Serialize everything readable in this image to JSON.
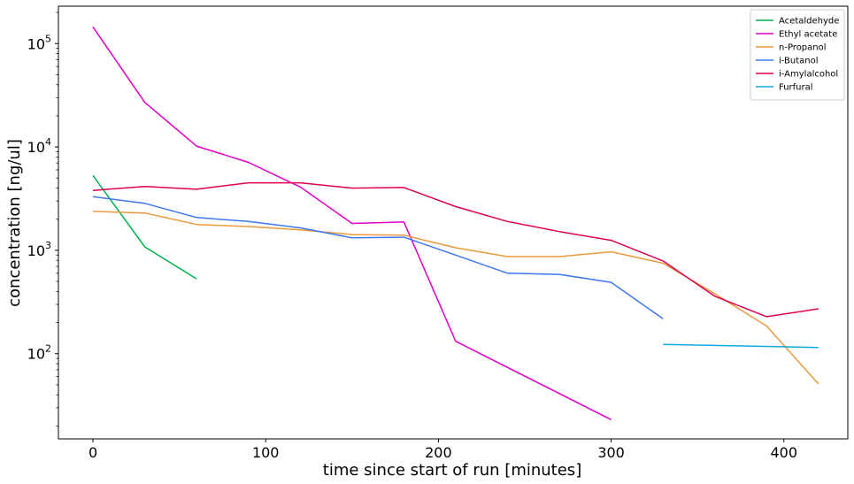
{
  "chart_data": {
    "type": "line",
    "title": "",
    "xlabel": "time since start of run [minutes]",
    "ylabel": "concentration [ng/ul]",
    "xlim": [
      -20,
      437
    ],
    "ylim": [
      15,
      230000
    ],
    "yscale": "log",
    "x_ticks": [
      0,
      100,
      200,
      300,
      400
    ],
    "y_ticks": [
      {
        "base": "10",
        "exp": "2",
        "value": 100
      },
      {
        "base": "10",
        "exp": "3",
        "value": 1000
      },
      {
        "base": "10",
        "exp": "4",
        "value": 10000
      },
      {
        "base": "10",
        "exp": "5",
        "value": 100000
      }
    ],
    "grid": false,
    "legend_position": "top-right",
    "series": [
      {
        "name": "Acetaldehyde",
        "color": "#00b050",
        "x": [
          0,
          30,
          60
        ],
        "y": [
          5300,
          1080,
          530
        ]
      },
      {
        "name": "Ethyl acetate",
        "color": "#e000c8",
        "x": [
          0,
          30,
          60,
          90,
          120,
          150,
          180,
          210,
          300
        ],
        "y": [
          145000,
          27000,
          10200,
          7100,
          4100,
          1820,
          1880,
          132,
          23
        ]
      },
      {
        "name": "n-Propanol",
        "color": "#ea9a3c",
        "x": [
          0,
          30,
          60,
          90,
          120,
          150,
          180,
          210,
          240,
          270,
          300,
          330,
          360,
          390,
          420
        ],
        "y": [
          2380,
          2300,
          1780,
          1700,
          1580,
          1420,
          1400,
          1060,
          870,
          870,
          970,
          750,
          380,
          185,
          51
        ]
      },
      {
        "name": "i-Butanol",
        "color": "#3c78f0",
        "x": [
          0,
          30,
          60,
          90,
          120,
          150,
          180,
          210,
          240,
          270,
          300,
          330
        ],
        "y": [
          3300,
          2850,
          2080,
          1900,
          1650,
          1320,
          1340,
          900,
          600,
          585,
          490,
          218
        ]
      },
      {
        "name": "i-Amylalcohol",
        "color": "#e00050",
        "x": [
          0,
          30,
          60,
          90,
          120,
          150,
          180,
          210,
          240,
          270,
          300,
          330,
          360,
          390,
          420
        ],
        "y": [
          3800,
          4150,
          3900,
          4500,
          4500,
          4000,
          4050,
          2650,
          1900,
          1520,
          1250,
          790,
          360,
          228,
          272
        ]
      },
      {
        "name": "Furfural",
        "color": "#10a8e0",
        "x": [
          330,
          420
        ],
        "y": [
          123,
          115
        ]
      }
    ]
  }
}
